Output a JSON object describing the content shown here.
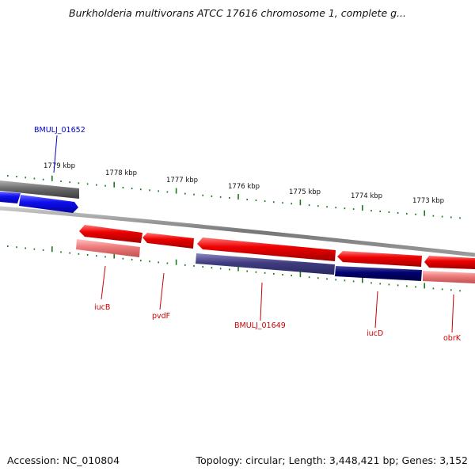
{
  "title": "Burkholderia multivorans ATCC 17616 chromosome 1, complete g...",
  "footer": {
    "accession": "Accession: NC_010804",
    "summary": "Topology: circular; Length: 3,448,421 bp; Genes: 3,152"
  },
  "colors": {
    "forward_gene": "#1010f0",
    "reverse_gene": "#e00000",
    "reverse_pseudo": "#f07070",
    "feature_navy": "#000070",
    "feature_purple": "#403c80",
    "backbone": "#7a7a7a",
    "tick": "#1a7a1a",
    "label_forward": "#0000cc",
    "label_reverse": "#cc0000"
  },
  "scale_ticks": [
    "1779 kbp",
    "1778 kbp",
    "1777 kbp",
    "1776 kbp",
    "1775 kbp",
    "1774 kbp",
    "1773 kbp"
  ],
  "gene_labels": [
    {
      "name": "BMULJ_01652",
      "strand": "forward"
    },
    {
      "name": "iucB",
      "strand": "reverse"
    },
    {
      "name": "pvdF",
      "strand": "reverse"
    },
    {
      "name": "BMULJ_01649",
      "strand": "reverse"
    },
    {
      "name": "iucD",
      "strand": "reverse"
    },
    {
      "name": "obrK",
      "strand": "reverse"
    }
  ]
}
